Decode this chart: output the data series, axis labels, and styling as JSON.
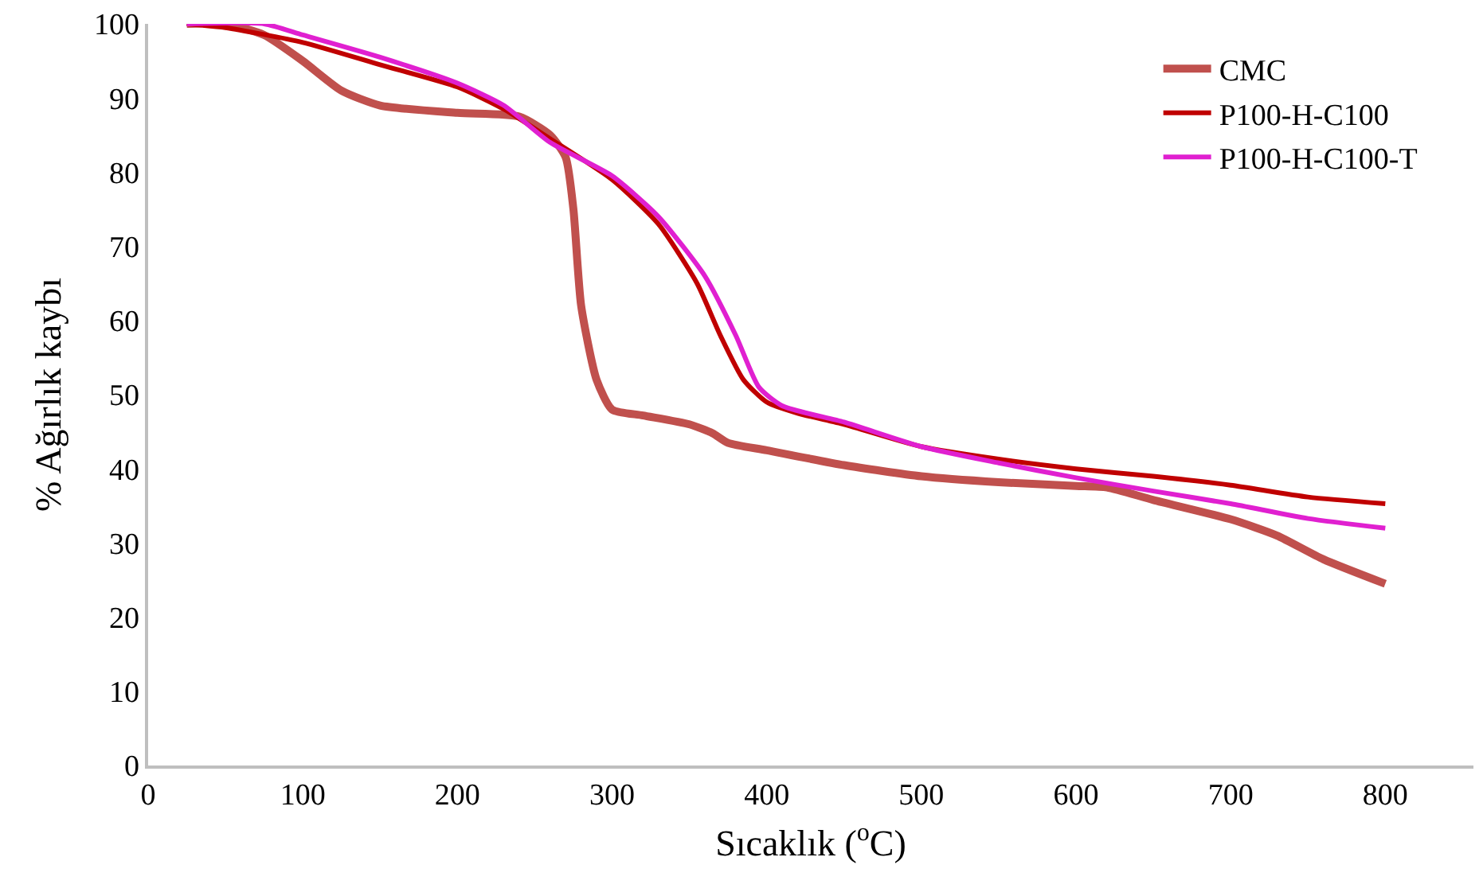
{
  "chart_data": {
    "type": "line",
    "xlabel": "Sıcaklık ($^{o}$C)",
    "ylabel": "% Ağırlık kaybı",
    "xlim": [
      0,
      857
    ],
    "ylim": [
      0,
      100
    ],
    "xticks": [
      0,
      100,
      200,
      300,
      400,
      500,
      600,
      700,
      800
    ],
    "yticks": [
      0,
      10,
      20,
      30,
      40,
      50,
      60,
      70,
      80,
      90,
      100
    ],
    "grid": false,
    "legend": "top right",
    "marker": "none",
    "line_style": "solid",
    "series": [
      {
        "name": "CMC",
        "color": "#c0504d",
        "x": [
          25,
          50,
          75,
          100,
          125,
          150,
          200,
          240,
          260,
          270,
          275,
          280,
          290,
          300,
          320,
          350,
          365,
          375,
          400,
          450,
          500,
          550,
          600,
          620,
          650,
          700,
          730,
          760,
          800
        ],
        "values": [
          100,
          100,
          98.5,
          95,
          91,
          89,
          88,
          87.5,
          85,
          82,
          75,
          62,
          52,
          48,
          47.2,
          46,
          44.8,
          43.5,
          42.5,
          40.5,
          39,
          38.2,
          37.7,
          37.5,
          35.8,
          33.2,
          31,
          27.8,
          24.5
        ]
      },
      {
        "name": "P100-H-C100",
        "color": "#c00000",
        "x": [
          25,
          50,
          100,
          150,
          200,
          230,
          260,
          300,
          330,
          355,
          370,
          385,
          400,
          420,
          450,
          500,
          550,
          600,
          650,
          700,
          750,
          800
        ],
        "values": [
          100,
          99.5,
          97.5,
          94.5,
          91.5,
          88.5,
          84.5,
          79,
          73,
          65,
          58,
          52,
          49,
          47.5,
          46,
          43,
          41.3,
          40,
          39,
          37.8,
          36.2,
          35.3
        ]
      },
      {
        "name": "P100-H-C100-T",
        "color": "#e020d0",
        "x": [
          25,
          75,
          100,
          150,
          200,
          230,
          260,
          300,
          330,
          360,
          380,
          395,
          410,
          450,
          500,
          550,
          600,
          650,
          700,
          750,
          800
        ],
        "values": [
          100,
          100,
          98.5,
          95.5,
          92,
          89,
          84,
          79.5,
          74,
          66,
          58,
          51,
          48.5,
          46.3,
          43,
          40.8,
          38.8,
          37,
          35.3,
          33.3,
          32
        ]
      }
    ]
  }
}
